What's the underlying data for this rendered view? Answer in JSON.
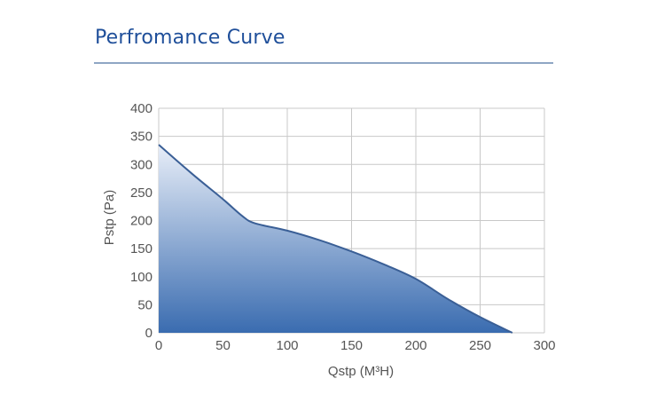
{
  "header": {
    "title": "Perfromance Curve"
  },
  "chart_data": {
    "type": "area",
    "xlabel": "Qstp (M³H)",
    "ylabel": "Pstp (Pa)",
    "xlim": [
      0,
      300
    ],
    "ylim": [
      0,
      400
    ],
    "xticks": [
      0,
      50,
      100,
      150,
      200,
      250,
      300
    ],
    "yticks": [
      0,
      50,
      100,
      150,
      200,
      250,
      300,
      350,
      400
    ],
    "grid": true,
    "series": [
      {
        "x": [
          0,
          25,
          50,
          65,
          75,
          100,
          125,
          150,
          175,
          200,
          225,
          250,
          275
        ],
        "y": [
          335,
          285,
          238,
          208,
          195,
          182,
          165,
          145,
          122,
          96,
          60,
          28,
          0
        ]
      }
    ],
    "colors": {
      "line": "#3a5f96",
      "fill_top": "#e8eef8",
      "fill_bottom": "#3a6cb0",
      "grid": "#c8c8c8"
    }
  }
}
